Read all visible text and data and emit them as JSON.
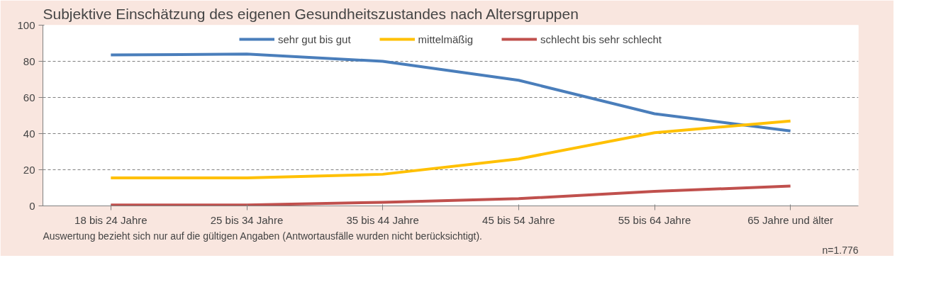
{
  "chart_data": {
    "type": "line",
    "title": "Subjektive Einschätzung des eigenen Gesundheitszustandes nach Altersgruppen",
    "categories": [
      "18 bis 24 Jahre",
      "25 bis 34 Jahre",
      "35 bis 44 Jahre",
      "45 bis 54 Jahre",
      "55 bis 64 Jahre",
      "65 Jahre und älter"
    ],
    "series": [
      {
        "name": "sehr gut bis gut",
        "color": "#4a7ebb",
        "values": [
          83.5,
          84,
          80,
          69.5,
          51,
          41.5
        ]
      },
      {
        "name": "mittelmäßig",
        "color": "#ffc000",
        "values": [
          15.5,
          15.5,
          17.5,
          26,
          40.5,
          47
        ]
      },
      {
        "name": "schlecht bis sehr schlecht",
        "color": "#c0504d",
        "values": [
          0.5,
          0.5,
          2,
          4,
          8,
          11
        ]
      }
    ],
    "ylim": [
      0,
      100
    ],
    "yticks": [
      0,
      20,
      40,
      60,
      80,
      100
    ],
    "grid": "y",
    "legend": "top",
    "line_style": "solid",
    "annotations": [
      "Auswertung bezieht sich nur auf die gültigen Angaben (Antwortausfälle wurden nicht berücksichtigt).",
      "n=1.776"
    ]
  }
}
